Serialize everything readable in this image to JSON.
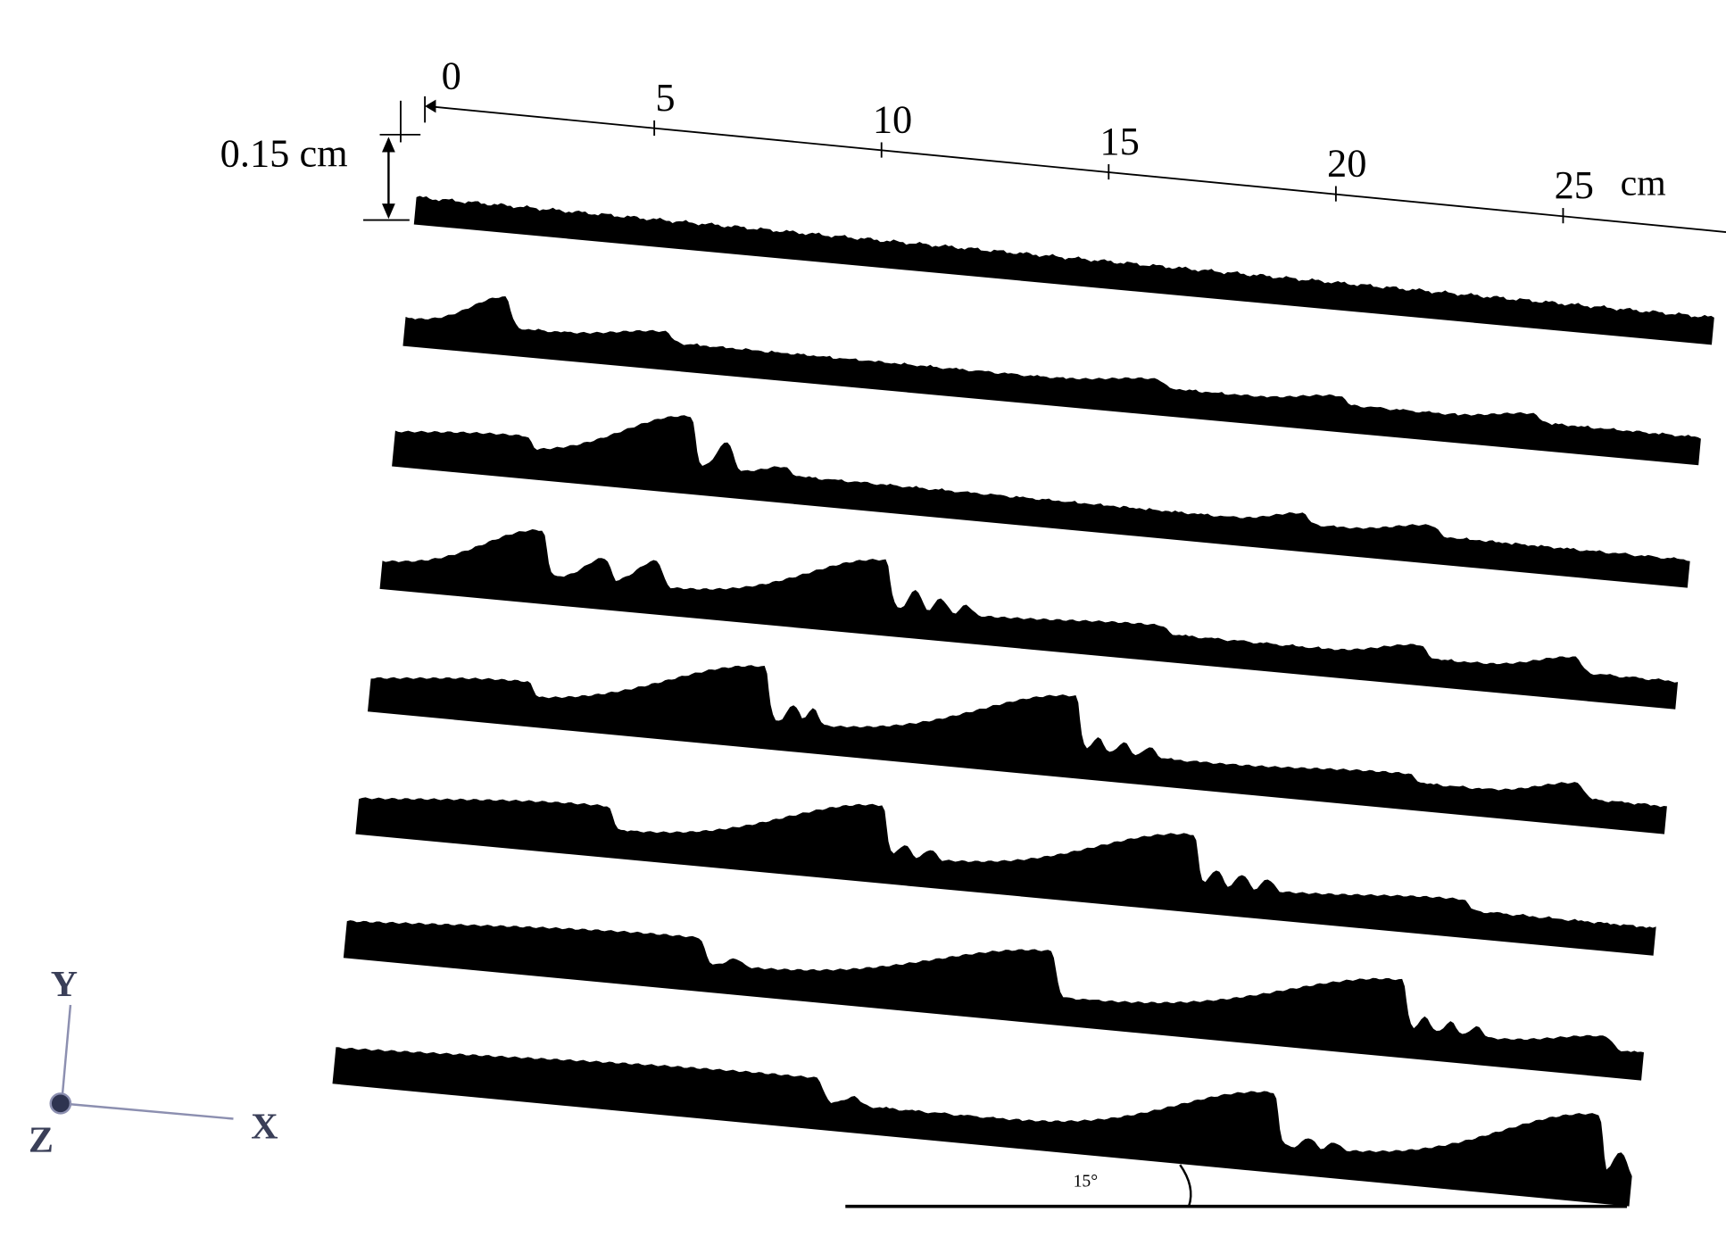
{
  "scale": {
    "ticks": [
      "0",
      "5",
      "10",
      "15",
      "20",
      "25"
    ],
    "unit": "cm"
  },
  "thickness_label": "0.15 cm",
  "angle_label": "15°",
  "axes": {
    "y": "Y",
    "x": "X",
    "z": "Z"
  }
}
